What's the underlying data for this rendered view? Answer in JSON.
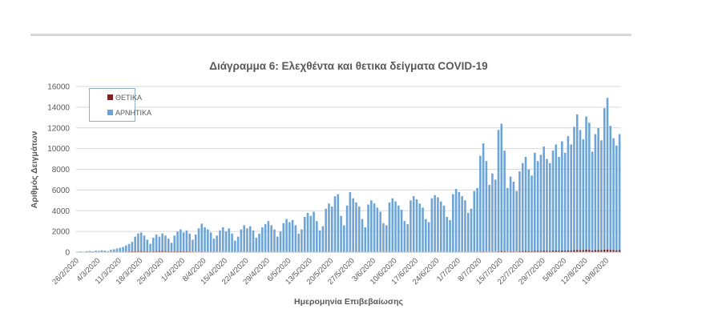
{
  "page": {
    "background": "#ffffff"
  },
  "chart_data": {
    "type": "bar",
    "stacked": true,
    "title": "Διάγραμμα 6: Ελεχθέντα και θετικα δείγματα COVID-19",
    "xlabel": "Ημερομηνία Επιβεβαίωσης",
    "ylabel": "Αριθμός Δειγμάτων",
    "ylim": [
      0,
      16000
    ],
    "y_step": 2000,
    "grid": "horizontal",
    "legend_position": "top-left-inside",
    "points_per_tick": 7,
    "y_tick_labels": [
      "0",
      "2000",
      "4000",
      "6000",
      "8000",
      "10000",
      "12000",
      "14000",
      "16000"
    ],
    "x_tick_labels": [
      "26/2/2020",
      "4/3/2020",
      "11/3/2020",
      "18/3/2020",
      "25/3/2020",
      "1/4/2020",
      "8/4/2020",
      "15/4/2020",
      "22/4/2020",
      "29/4/2020",
      "6/5/2020",
      "13/5/2020",
      "20/5/2020",
      "27/5/2020",
      "3/6/2020",
      "10/6/2020",
      "17/6/2020",
      "24/6/2020",
      "1/7/2020",
      "8/7/2020",
      "15/7/2020",
      "22/7/2020",
      "29/7/2020",
      "5/8/2020",
      "12/8/2020",
      "19/8/2020"
    ],
    "series": [
      {
        "name": "ΘΕΤΙΚΑ",
        "color": "#7c2424",
        "values": [
          0,
          0,
          0,
          0,
          10,
          10,
          10,
          10,
          20,
          20,
          20,
          20,
          30,
          30,
          40,
          50,
          60,
          70,
          80,
          90,
          100,
          110,
          100,
          80,
          70,
          100,
          100,
          110,
          110,
          100,
          90,
          70,
          90,
          100,
          100,
          90,
          80,
          70,
          60,
          50,
          60,
          70,
          60,
          60,
          50,
          40,
          40,
          50,
          50,
          40,
          40,
          30,
          30,
          20,
          30,
          30,
          30,
          30,
          20,
          20,
          20,
          20,
          20,
          20,
          20,
          10,
          10,
          10,
          10,
          20,
          10,
          10,
          10,
          10,
          10,
          10,
          10,
          10,
          10,
          10,
          10,
          10,
          10,
          10,
          10,
          10,
          10,
          10,
          10,
          10,
          10,
          10,
          10,
          10,
          10,
          10,
          10,
          10,
          10,
          10,
          10,
          10,
          10,
          20,
          20,
          20,
          10,
          10,
          10,
          10,
          20,
          30,
          20,
          20,
          20,
          10,
          20,
          30,
          30,
          30,
          20,
          20,
          20,
          20,
          30,
          40,
          40,
          30,
          30,
          20,
          30,
          40,
          50,
          60,
          70,
          60,
          50,
          60,
          50,
          90,
          110,
          100,
          60,
          70,
          70,
          60,
          100,
          110,
          120,
          110,
          100,
          130,
          120,
          130,
          150,
          140,
          130,
          150,
          160,
          140,
          170,
          150,
          180,
          170,
          200,
          220,
          200,
          190,
          230,
          220,
          170,
          200,
          210,
          190,
          240,
          260,
          220,
          200,
          180,
          200
        ]
      },
      {
        "name": "ΑΡΝΗΤΙΚΑ",
        "color": "#6ca4d9",
        "values": [
          50,
          70,
          40,
          90,
          100,
          70,
          130,
          110,
          160,
          130,
          80,
          200,
          250,
          320,
          380,
          450,
          590,
          730,
          920,
          1410,
          1700,
          1790,
          1500,
          1120,
          730,
          1300,
          1600,
          1390,
          1690,
          1500,
          1210,
          830,
          1510,
          1900,
          2100,
          1810,
          2020,
          1730,
          1140,
          1650,
          2240,
          2680,
          2340,
          2140,
          1850,
          1260,
          1560,
          2050,
          2350,
          1960,
          2260,
          1770,
          1070,
          1480,
          2170,
          2570,
          2270,
          2470,
          2080,
          1380,
          1780,
          2380,
          2680,
          2980,
          2580,
          2190,
          1490,
          1990,
          2790,
          3180,
          2890,
          3090,
          2590,
          1790,
          2190,
          3390,
          3790,
          3490,
          3890,
          2990,
          2090,
          2490,
          4190,
          4690,
          4390,
          5390,
          5590,
          3490,
          2590,
          4490,
          5790,
          5190,
          4790,
          4390,
          3190,
          2390,
          4590,
          4990,
          4690,
          4290,
          3890,
          2790,
          2590,
          4780,
          5180,
          4880,
          4490,
          4090,
          2990,
          2690,
          4980,
          5370,
          5080,
          4680,
          4280,
          3190,
          2880,
          5170,
          5470,
          5270,
          4880,
          4480,
          3380,
          3080,
          5570,
          6060,
          5760,
          5370,
          4970,
          3780,
          4170,
          5860,
          6150,
          9240,
          10430,
          8740,
          6450,
          7540,
          6950,
          11710,
          12290,
          9700,
          6140,
          7230,
          6730,
          5840,
          7700,
          8490,
          9080,
          7890,
          7300,
          9470,
          8680,
          9270,
          10050,
          8860,
          8470,
          9650,
          10240,
          9060,
          10530,
          9450,
          11020,
          10230,
          11900,
          13080,
          11600,
          10710,
          12870,
          12280,
          9530,
          11200,
          11790,
          10610,
          13660,
          14640,
          11980,
          10800,
          10120,
          11200
        ]
      }
    ]
  }
}
